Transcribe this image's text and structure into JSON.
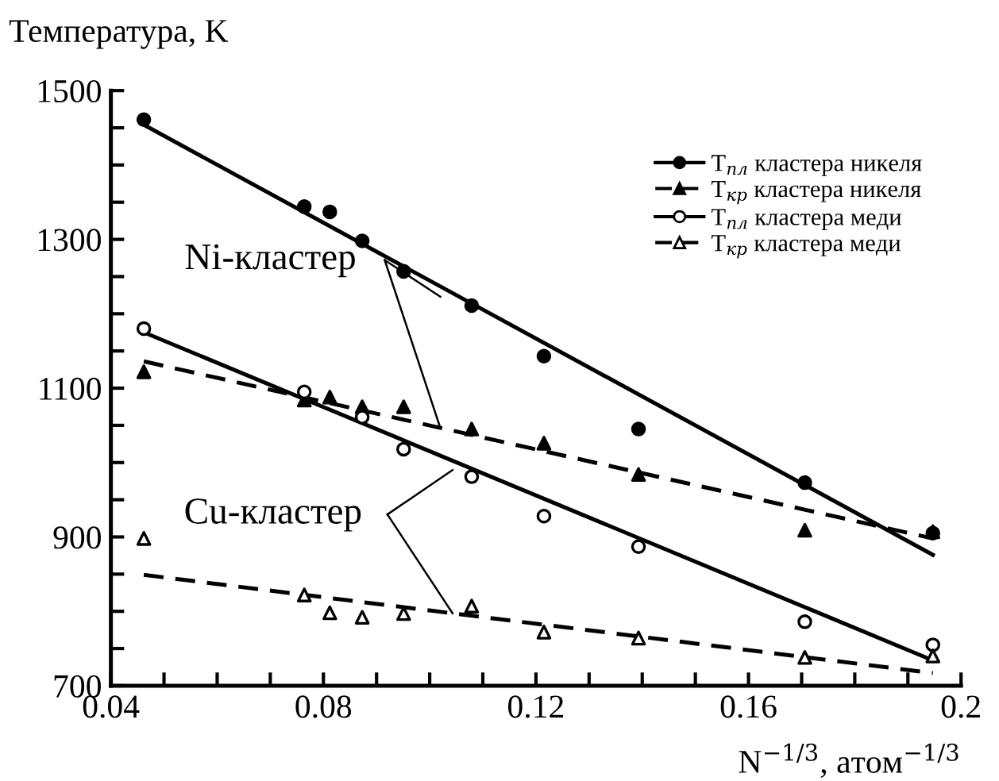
{
  "chart_data": {
    "type": "scatter",
    "ylabel": "Температура, K",
    "xlabel": "N$^{−1/3}$, атом$^{−1/3}$",
    "xlim": [
      0.04,
      0.2
    ],
    "ylim": [
      700,
      1500
    ],
    "xticks": [
      0.04,
      {
        "value": 0.05,
        "label": null
      },
      {
        "value": 0.06,
        "label": null
      },
      {
        "value": 0.07,
        "label": null
      },
      0.08,
      {
        "value": 0.09,
        "label": null
      },
      {
        "value": 0.1,
        "label": null
      },
      {
        "value": 0.11,
        "label": null
      },
      0.12,
      {
        "value": 0.13,
        "label": null
      },
      {
        "value": 0.14,
        "label": null
      },
      {
        "value": 0.15,
        "label": null
      },
      0.16,
      {
        "value": 0.17,
        "label": null
      },
      {
        "value": 0.18,
        "label": null
      },
      {
        "value": 0.19,
        "label": null
      },
      0.2
    ],
    "yticks": [
      700,
      {
        "value": 750,
        "label": null
      },
      {
        "value": 800,
        "label": null
      },
      {
        "value": 850,
        "label": null
      },
      900,
      {
        "value": 950,
        "label": null
      },
      {
        "value": 1000,
        "label": null
      },
      {
        "value": 1050,
        "label": null
      },
      1100,
      {
        "value": 1150,
        "label": null
      },
      {
        "value": 1200,
        "label": null
      },
      {
        "value": 1250,
        "label": null
      },
      1300,
      {
        "value": 1350,
        "label": null
      },
      {
        "value": 1400,
        "label": null
      },
      {
        "value": 1450,
        "label": null
      },
      1500
    ],
    "grid": false,
    "legend": "top right",
    "series": [
      {
        "name": "T$_{пл}$ кластера никеля",
        "marker": "circle",
        "color": "#000000",
        "x": [
          0.0462,
          0.0764,
          0.0812,
          0.0873,
          0.0951,
          0.1079,
          0.1215,
          0.1393,
          0.1706,
          0.1947
        ],
        "values": [
          1461,
          1344,
          1337,
          1298,
          1257,
          1211,
          1143,
          1045,
          973,
          905
        ]
      },
      {
        "type": "line",
        "line_style": "solid",
        "color": "#000000",
        "x": [
          0.0462,
          0.1947
        ],
        "values": [
          1454,
          876
        ]
      },
      {
        "name": "T$_{кр}$ кластера никеля",
        "marker": "triangle",
        "color": "#000000",
        "x": [
          0.0462,
          0.0764,
          0.0812,
          0.0873,
          0.0951,
          0.1079,
          0.1215,
          0.1393,
          0.1706,
          0.1947
        ],
        "values": [
          1122,
          1084,
          1088,
          1075,
          1075,
          1045,
          1026,
          984,
          909,
          907
        ]
      },
      {
        "type": "line",
        "line_style": "dashed",
        "color": "#000000",
        "x": [
          0.0462,
          0.1947
        ],
        "values": [
          1136,
          898
        ]
      },
      {
        "name": "T$_{пл}$ кластера меди",
        "marker": "circle",
        "color": "#000000",
        "x": [
          0.0462,
          0.0764,
          0.0873,
          0.0951,
          0.1079,
          0.1215,
          0.1393,
          0.1706,
          0.1947
        ],
        "values": [
          1180,
          1095,
          1061,
          1018,
          981,
          928,
          887,
          786,
          755
        ]
      },
      {
        "type": "line",
        "line_style": "solid",
        "color": "#000000",
        "x": [
          0.0462,
          0.1947
        ],
        "values": [
          1175,
          734
        ]
      },
      {
        "name": "T$_{кр}$ кластера меди",
        "marker": "triangle",
        "color": "#000000",
        "x": [
          0.0462,
          0.0764,
          0.0812,
          0.0873,
          0.0951,
          0.1079,
          0.1215,
          0.1393,
          0.1706,
          0.1947
        ],
        "values": [
          898,
          822,
          798,
          792,
          797,
          807,
          772,
          764,
          738,
          740
        ]
      },
      {
        "type": "line",
        "line_style": "dashed",
        "color": "#000000",
        "x": [
          0.0462,
          0.1947
        ],
        "values": [
          849,
          717
        ]
      }
    ],
    "annotations": [
      {
        "text": "Ni-кластер",
        "x": 0.102,
        "y": 1223
      },
      {
        "text": "Cu-кластер",
        "x": 0.1043,
        "y": 990
      }
    ]
  }
}
